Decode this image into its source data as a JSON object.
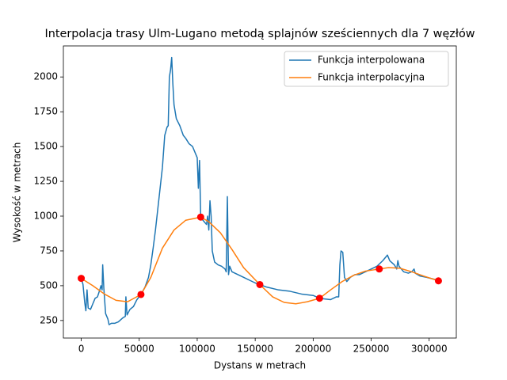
{
  "chart_data": {
    "type": "line",
    "title": "Interpolacja trasy Ulm-Lugano metodą splajnów sześciennych dla 7 węzłów",
    "x_label": "Dystans w metrach",
    "y_label": "Wysokość w metrach",
    "xlim": [
      -15400,
      323400
    ],
    "ylim": [
      124,
      2223
    ],
    "xticks": [
      0,
      50000,
      100000,
      150000,
      200000,
      250000,
      300000
    ],
    "yticks": [
      250,
      500,
      750,
      1000,
      1250,
      1500,
      1750,
      2000
    ],
    "legend": "upper right",
    "series": [
      {
        "name": "Funkcja interpolowana",
        "color": "#1f77b4",
        "x": [
          0,
          1500,
          3000,
          4000,
          5000,
          6000,
          8000,
          10000,
          12000,
          14000,
          16000,
          17000,
          18000,
          18500,
          19500,
          21000,
          23000,
          24000,
          26000,
          29000,
          32000,
          36000,
          38000,
          38500,
          39500,
          42000,
          45000,
          48000,
          51500,
          55000,
          58000,
          60000,
          62000,
          64000,
          66000,
          68000,
          70000,
          72000,
          74000,
          75000,
          76000,
          77000,
          78000,
          79000,
          80000,
          82000,
          85000,
          88000,
          90000,
          93000,
          96000,
          99000,
          100000,
          101000,
          102000,
          103000,
          105000,
          107000,
          108000,
          109000,
          110000,
          111000,
          112000,
          113000,
          115000,
          118000,
          121000,
          124000,
          125000,
          126000,
          127000,
          128000,
          130000,
          135000,
          140000,
          145000,
          150000,
          154000,
          160000,
          170000,
          180000,
          190000,
          200000,
          205500,
          210000,
          215000,
          220000,
          222000,
          223000,
          224000,
          225500,
          227000,
          229000,
          232000,
          236000,
          240000,
          245000,
          250000,
          255000,
          260000,
          264000,
          266000,
          270000,
          272000,
          273000,
          274000,
          278000,
          282000,
          285000,
          287000,
          288000,
          292000,
          298000,
          305000,
          308000
        ],
        "values": [
          553,
          510,
          380,
          320,
          470,
          340,
          330,
          370,
          410,
          420,
          470,
          500,
          470,
          650,
          480,
          300,
          260,
          220,
          230,
          230,
          240,
          270,
          280,
          420,
          290,
          330,
          350,
          400,
          437,
          490,
          560,
          650,
          770,
          900,
          1050,
          1200,
          1350,
          1580,
          1640,
          1650,
          2000,
          2050,
          2140,
          1950,
          1800,
          1700,
          1650,
          1580,
          1560,
          1520,
          1500,
          1440,
          1420,
          1200,
          1400,
          993,
          970,
          950,
          940,
          1000,
          900,
          1110,
          1000,
          750,
          670,
          650,
          640,
          620,
          600,
          1140,
          580,
          640,
          600,
          580,
          560,
          540,
          520,
          508,
          490,
          470,
          460,
          440,
          430,
          410,
          405,
          400,
          420,
          420,
          650,
          750,
          740,
          560,
          530,
          560,
          580,
          580,
          600,
          620,
          640,
          680,
          720,
          680,
          650,
          620,
          680,
          640,
          600,
          590,
          600,
          620,
          590,
          570,
          560,
          545,
          535
        ]
      },
      {
        "name": "Funkcja interpolacyjna",
        "color": "#ff7f0e",
        "x": [
          0,
          10000,
          20000,
          30000,
          40000,
          51500,
          60000,
          70000,
          80000,
          90000,
          103000,
          110000,
          120000,
          130000,
          140000,
          154000,
          165000,
          175000,
          185000,
          195000,
          205500,
          215000,
          225000,
          235000,
          245000,
          257000,
          265000,
          275000,
          285000,
          295000,
          308000
        ],
        "values": [
          553,
          500,
          440,
          395,
          385,
          437,
          560,
          770,
          900,
          970,
          993,
          960,
          880,
          760,
          630,
          508,
          420,
          380,
          370,
          385,
          410,
          470,
          530,
          575,
          605,
          620,
          630,
          625,
          600,
          570,
          535
        ]
      }
    ],
    "nodes": {
      "color": "#ff0000",
      "x": [
        0,
        51500,
        103000,
        154000,
        205500,
        257000,
        308000
      ],
      "values": [
        553,
        437,
        993,
        508,
        410,
        620,
        535
      ]
    }
  }
}
